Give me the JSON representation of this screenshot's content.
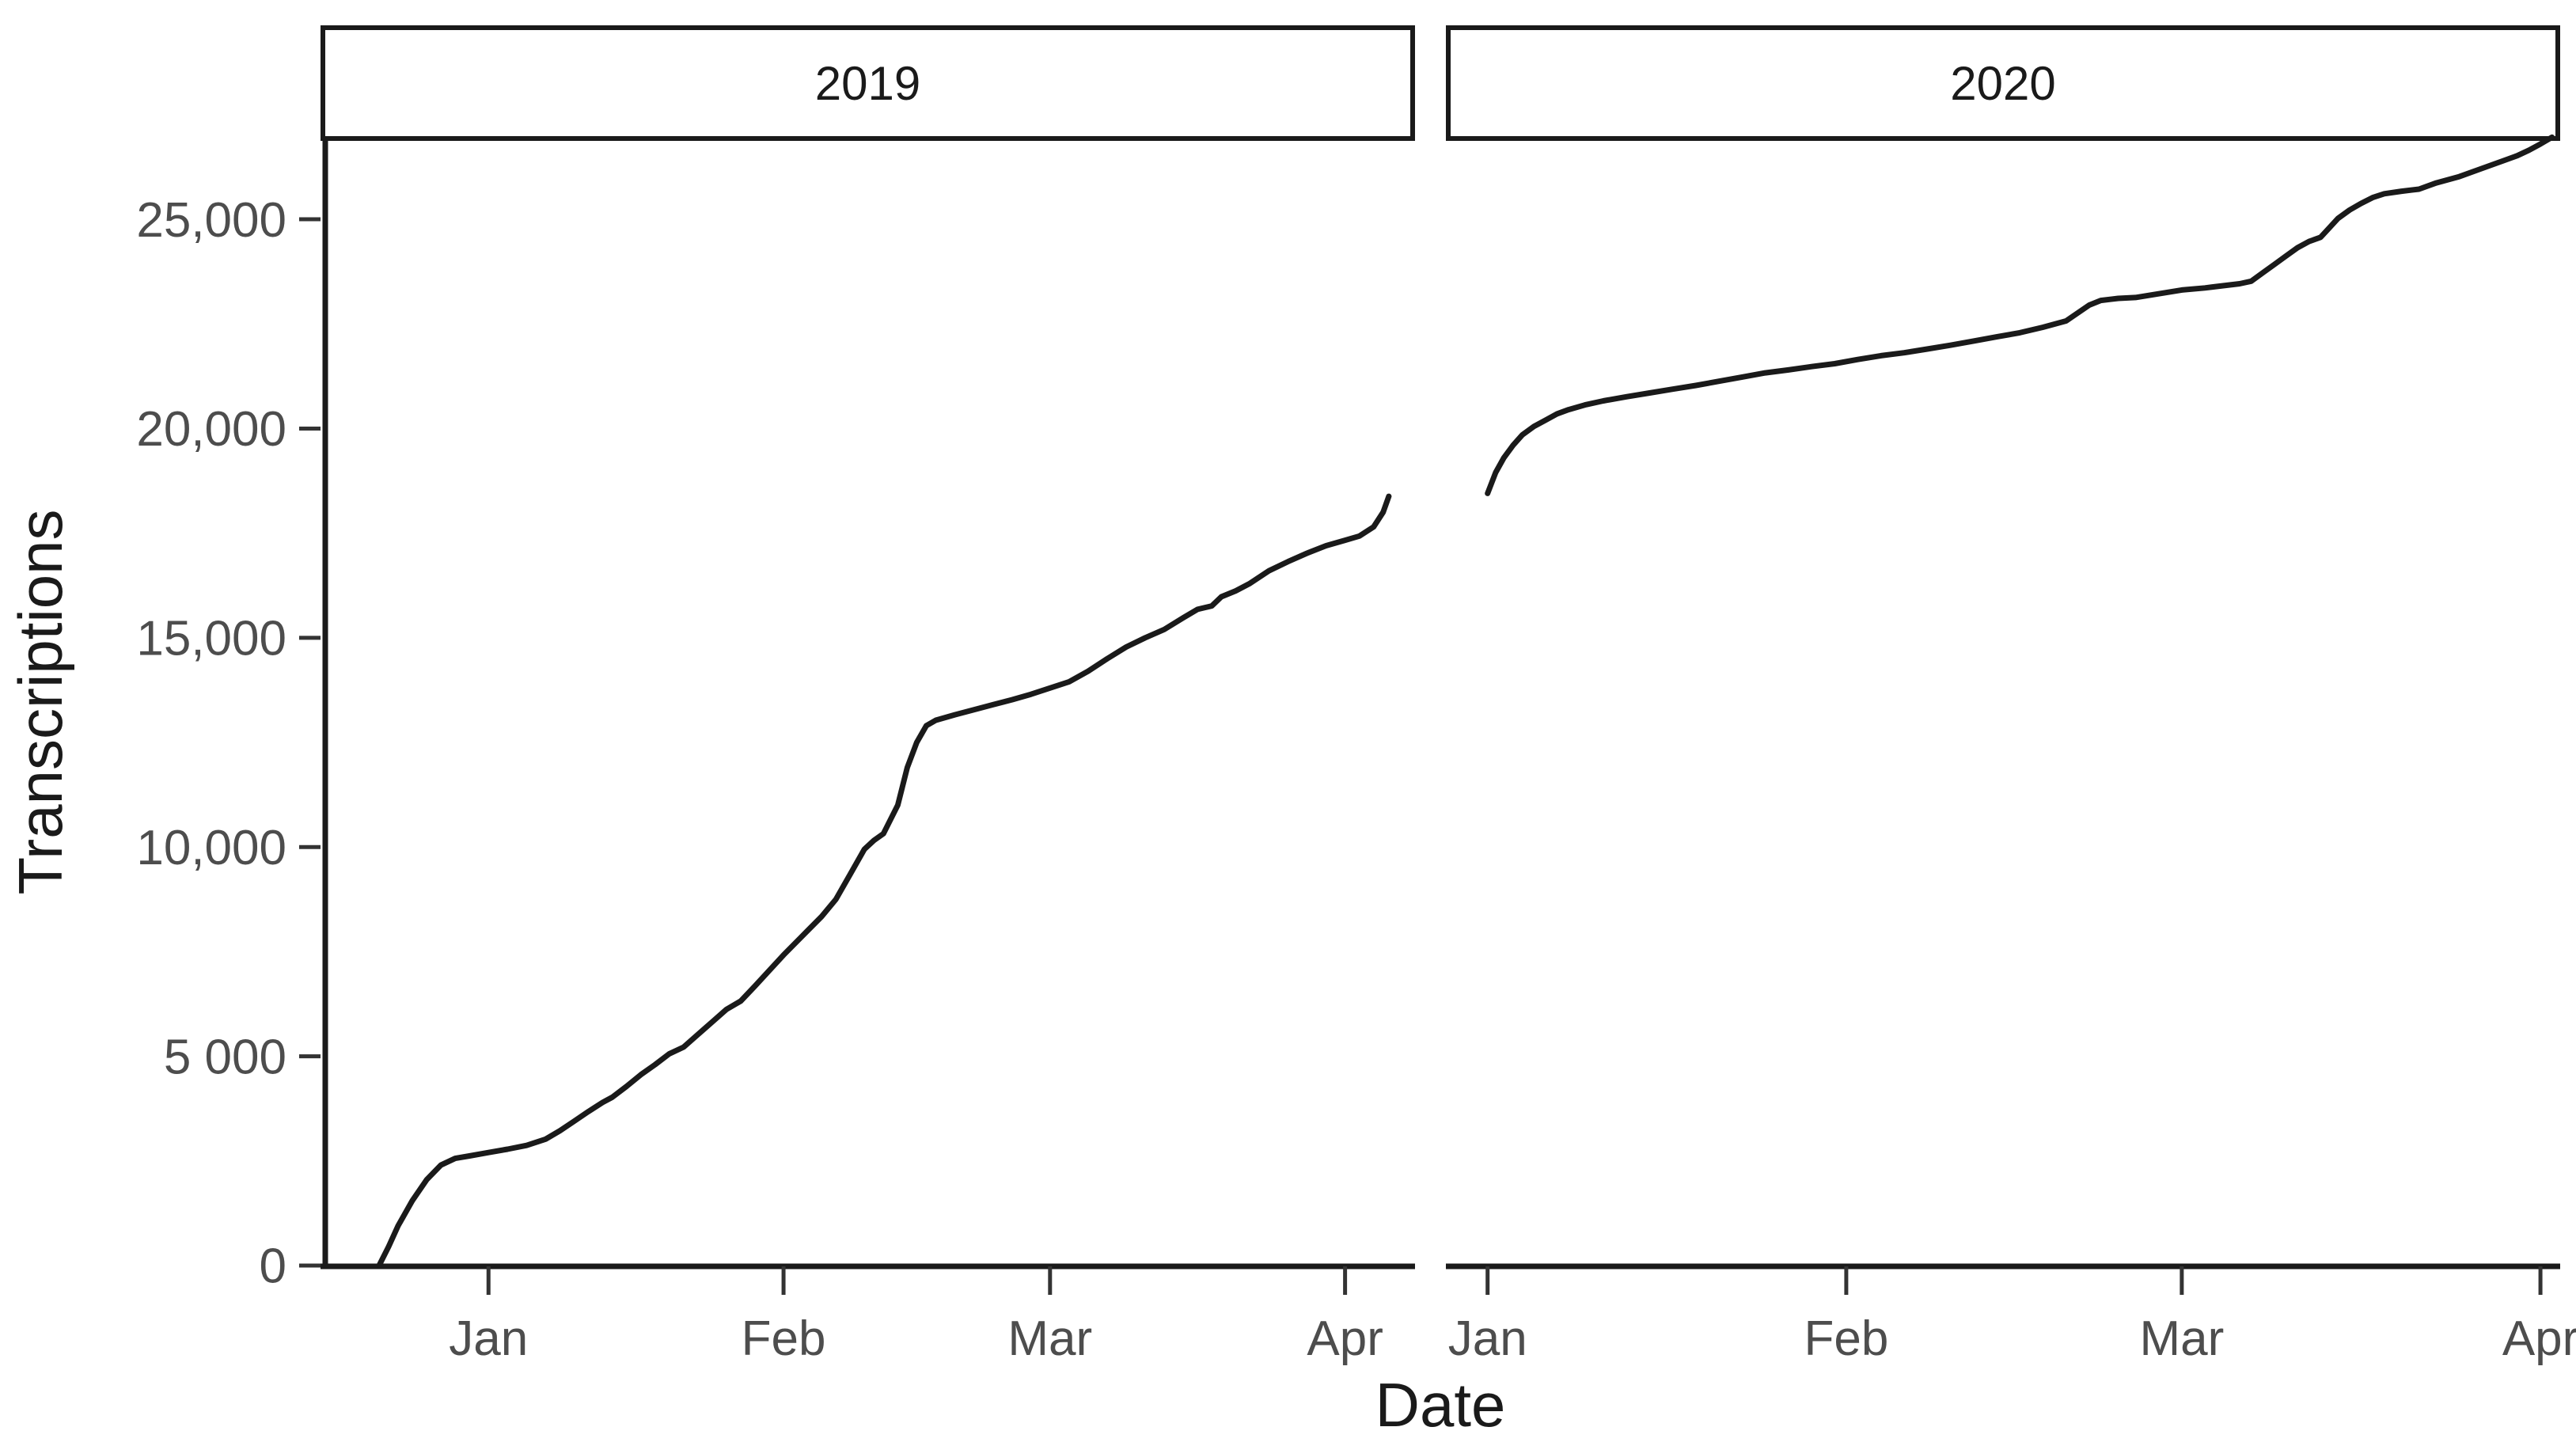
{
  "chart_data": {
    "type": "line",
    "title": "",
    "xlabel": "Date",
    "ylabel": "Transcriptions",
    "background": "#ffffff",
    "line_color": "#1a1a1a",
    "axis_color": "#1a1a1a",
    "tick_color": "#333333",
    "tick_label_color": "#4d4d4d",
    "strip_fill": "#ffffff",
    "strip_border": "#1a1a1a",
    "grid": "off",
    "legend": "none",
    "ylim": [
      0,
      26930
    ],
    "y_ticks": [
      {
        "value": 0,
        "label": "0"
      },
      {
        "value": 5000,
        "label": "5 000"
      },
      {
        "value": 10000,
        "label": "10,000"
      },
      {
        "value": 15000,
        "label": "15,000"
      },
      {
        "value": 20000,
        "label": "20,000"
      },
      {
        "value": 25000,
        "label": "25,000"
      }
    ],
    "facets": [
      {
        "label": "2019",
        "x_domain_days": [
          -17.4,
          97.1
        ],
        "x_ticks": [
          {
            "day": 0,
            "label": "Jan"
          },
          {
            "day": 31,
            "label": "Feb"
          },
          {
            "day": 59,
            "label": "Mar"
          },
          {
            "day": 90,
            "label": "Apr"
          }
        ],
        "points_day_value": [
          [
            -11.5,
            0
          ],
          [
            -10.5,
            450
          ],
          [
            -9.5,
            950
          ],
          [
            -8,
            1550
          ],
          [
            -6.5,
            2050
          ],
          [
            -5,
            2400
          ],
          [
            -3.5,
            2560
          ],
          [
            -2,
            2620
          ],
          [
            0,
            2700
          ],
          [
            2,
            2780
          ],
          [
            4,
            2870
          ],
          [
            6,
            3020
          ],
          [
            7.5,
            3220
          ],
          [
            9,
            3450
          ],
          [
            10.5,
            3680
          ],
          [
            12,
            3900
          ],
          [
            13,
            4020
          ],
          [
            14.5,
            4280
          ],
          [
            16,
            4560
          ],
          [
            17.5,
            4800
          ],
          [
            19,
            5060
          ],
          [
            20.5,
            5220
          ],
          [
            22,
            5520
          ],
          [
            23.5,
            5820
          ],
          [
            25,
            6120
          ],
          [
            26.5,
            6320
          ],
          [
            28,
            6680
          ],
          [
            29.5,
            7050
          ],
          [
            31,
            7420
          ],
          [
            33,
            7880
          ],
          [
            35,
            8340
          ],
          [
            36.5,
            8750
          ],
          [
            38,
            9350
          ],
          [
            39.5,
            9950
          ],
          [
            40.5,
            10160
          ],
          [
            41.5,
            10320
          ],
          [
            43,
            11000
          ],
          [
            44,
            11900
          ],
          [
            45,
            12500
          ],
          [
            46,
            12900
          ],
          [
            47,
            13030
          ],
          [
            49,
            13160
          ],
          [
            51,
            13280
          ],
          [
            53,
            13400
          ],
          [
            55,
            13520
          ],
          [
            57,
            13650
          ],
          [
            59,
            13800
          ],
          [
            61,
            13950
          ],
          [
            63,
            14200
          ],
          [
            65,
            14500
          ],
          [
            67,
            14780
          ],
          [
            69,
            15000
          ],
          [
            71,
            15200
          ],
          [
            73,
            15480
          ],
          [
            74.5,
            15680
          ],
          [
            76,
            15760
          ],
          [
            77,
            15980
          ],
          [
            78.5,
            16120
          ],
          [
            80,
            16300
          ],
          [
            82,
            16600
          ],
          [
            84,
            16820
          ],
          [
            86,
            17020
          ],
          [
            88,
            17200
          ],
          [
            90,
            17330
          ],
          [
            91.5,
            17430
          ],
          [
            93,
            17650
          ],
          [
            94,
            18000
          ],
          [
            94.6,
            18380
          ]
        ]
      },
      {
        "label": "2020",
        "x_domain_days": [
          -3.4,
          92.5
        ],
        "x_ticks": [
          {
            "day": 0,
            "label": "Jan"
          },
          {
            "day": 31,
            "label": "Feb"
          },
          {
            "day": 60,
            "label": "Mar"
          },
          {
            "day": 91,
            "label": "Apr"
          }
        ],
        "points_day_value": [
          [
            0,
            18450
          ],
          [
            0.7,
            18950
          ],
          [
            1.4,
            19300
          ],
          [
            2.2,
            19600
          ],
          [
            3,
            19850
          ],
          [
            4,
            20050
          ],
          [
            5,
            20200
          ],
          [
            6,
            20350
          ],
          [
            7,
            20450
          ],
          [
            8.5,
            20570
          ],
          [
            10,
            20660
          ],
          [
            12,
            20760
          ],
          [
            14,
            20850
          ],
          [
            16,
            20940
          ],
          [
            18,
            21030
          ],
          [
            20,
            21130
          ],
          [
            22,
            21230
          ],
          [
            24,
            21330
          ],
          [
            26,
            21400
          ],
          [
            28,
            21480
          ],
          [
            30,
            21550
          ],
          [
            32,
            21650
          ],
          [
            34,
            21740
          ],
          [
            36,
            21810
          ],
          [
            38,
            21900
          ],
          [
            40,
            21990
          ],
          [
            42,
            22090
          ],
          [
            44,
            22190
          ],
          [
            46,
            22290
          ],
          [
            48,
            22420
          ],
          [
            50,
            22570
          ],
          [
            51,
            22760
          ],
          [
            52,
            22950
          ],
          [
            53,
            23060
          ],
          [
            54.5,
            23110
          ],
          [
            56,
            23130
          ],
          [
            58,
            23220
          ],
          [
            60,
            23310
          ],
          [
            62,
            23360
          ],
          [
            63.5,
            23410
          ],
          [
            65,
            23460
          ],
          [
            66,
            23520
          ],
          [
            67,
            23720
          ],
          [
            68,
            23920
          ],
          [
            69,
            24120
          ],
          [
            70,
            24320
          ],
          [
            71,
            24470
          ],
          [
            72,
            24570
          ],
          [
            72.5,
            24720
          ],
          [
            73.5,
            25020
          ],
          [
            74.5,
            25220
          ],
          [
            75.5,
            25380
          ],
          [
            76.5,
            25520
          ],
          [
            77.5,
            25610
          ],
          [
            79,
            25670
          ],
          [
            80.5,
            25720
          ],
          [
            82,
            25870
          ],
          [
            84,
            26020
          ],
          [
            86,
            26220
          ],
          [
            88,
            26420
          ],
          [
            89,
            26520
          ],
          [
            90,
            26650
          ],
          [
            91,
            26800
          ],
          [
            92,
            26960
          ]
        ]
      }
    ]
  }
}
